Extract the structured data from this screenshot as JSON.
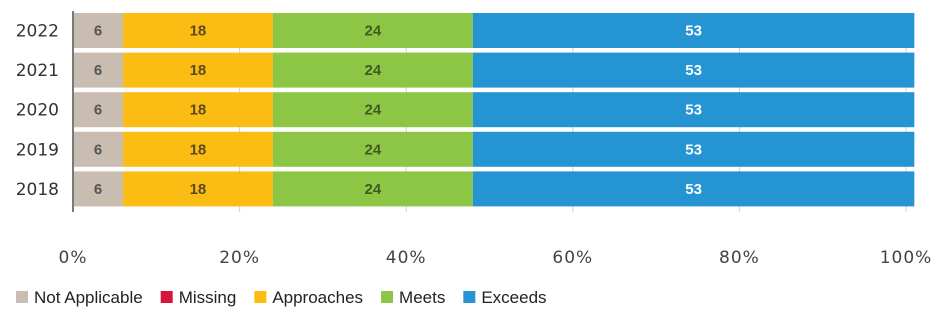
{
  "chart_data": {
    "type": "bar",
    "orientation": "horizontal",
    "stacked": true,
    "categories": [
      "2022",
      "2021",
      "2020",
      "2019",
      "2018"
    ],
    "series": [
      {
        "name": "Not Applicable",
        "color": "#c9bdb1",
        "label_color": "#555555",
        "values": [
          6,
          6,
          6,
          6,
          6
        ]
      },
      {
        "name": "Missing",
        "color": "#d7143c",
        "label_color": "#ffffff",
        "values": [
          0,
          0,
          0,
          0,
          0
        ]
      },
      {
        "name": "Approaches",
        "color": "#fbbc14",
        "label_color": "#5a4a20",
        "values": [
          18,
          18,
          18,
          18,
          18
        ]
      },
      {
        "name": "Meets",
        "color": "#8dc644",
        "label_color": "#3f5a23",
        "values": [
          24,
          24,
          24,
          24,
          24
        ]
      },
      {
        "name": "Exceeds",
        "color": "#2594d2",
        "label_color": "#ffffff",
        "values": [
          53,
          53,
          53,
          53,
          53
        ]
      }
    ],
    "xlim": [
      0,
      100
    ],
    "xticks": [
      0,
      20,
      40,
      60,
      80,
      100
    ],
    "xtick_labels": [
      "0%",
      "20%",
      "40%",
      "60%",
      "80%",
      "100%"
    ],
    "grid": true,
    "legend_position": "bottom-left",
    "title": "",
    "xlabel": "",
    "ylabel": ""
  }
}
